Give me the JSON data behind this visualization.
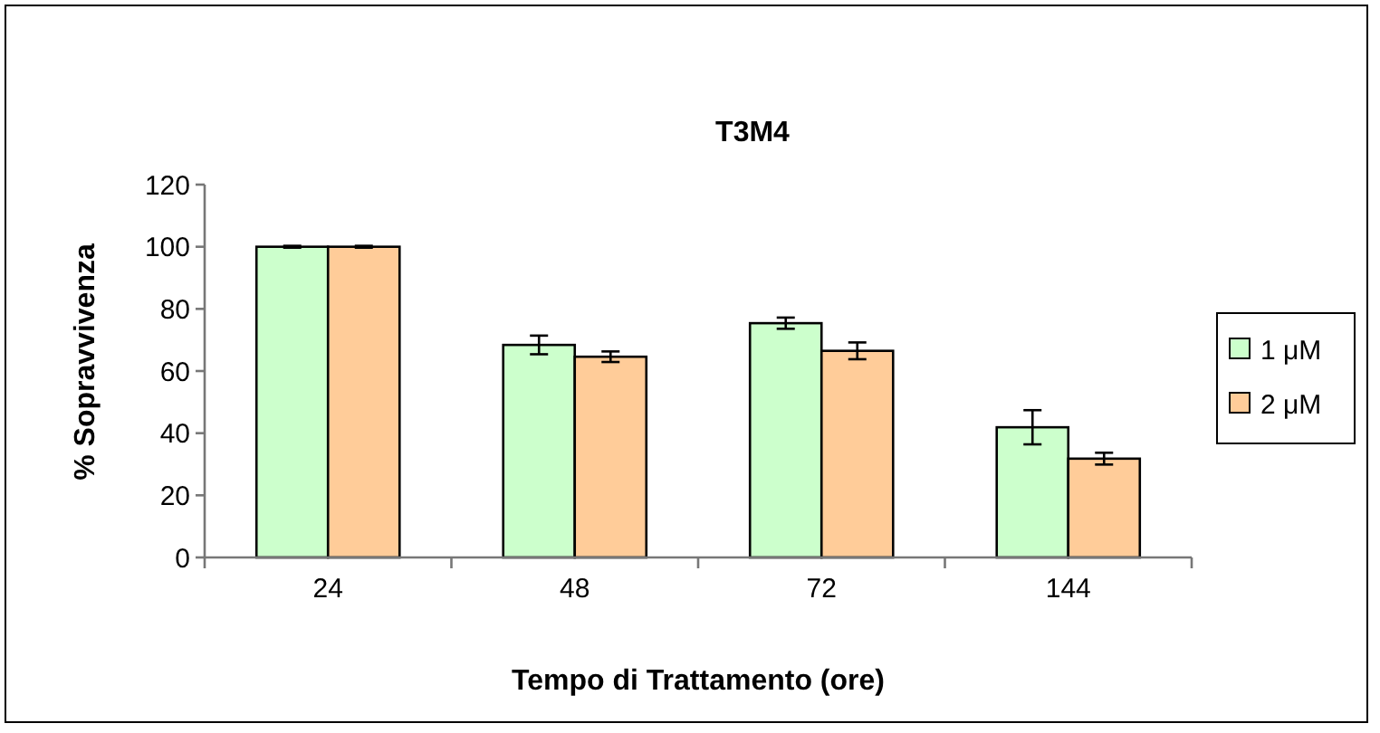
{
  "chart_data": {
    "type": "bar",
    "title": "T3M4",
    "xlabel": "Tempo di Trattamento (ore)",
    "ylabel": "% Sopravvivenza",
    "categories": [
      "24",
      "48",
      "72",
      "144"
    ],
    "series": [
      {
        "name": "1 μM",
        "color": "#ccffcc",
        "values": [
          100,
          68.4,
          75.4,
          41.9
        ],
        "errors": [
          0.3,
          3,
          1.8,
          5.5
        ]
      },
      {
        "name": "2 μM",
        "color": "#ffcc99",
        "values": [
          100,
          64.6,
          66.5,
          31.8
        ],
        "errors": [
          0.3,
          1.7,
          2.7,
          1.9
        ]
      }
    ],
    "ylim": [
      0,
      120
    ],
    "yticks": [
      0,
      20,
      40,
      60,
      80,
      100,
      120
    ],
    "grid": false,
    "legend": "right"
  }
}
